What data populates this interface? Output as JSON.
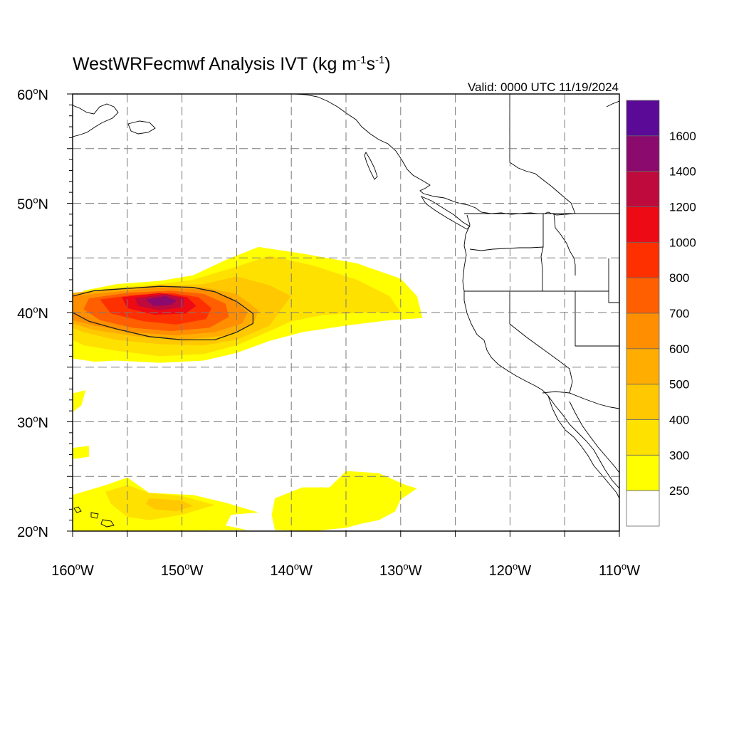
{
  "title": {
    "text": "WestWRFecmwf Analysis IVT (kg m",
    "sup1": "-1",
    "mid": "s",
    "sup2": "-1",
    "end": ")"
  },
  "valid_label": "Valid: 0000 UTC 11/19/2024",
  "map": {
    "projection": "cylindrical",
    "lon_range": [
      -160,
      -110
    ],
    "lat_range": [
      20,
      60
    ],
    "grid": "dashed every 5 degrees",
    "lat_ticks": [
      {
        "lat": 60,
        "deg": "60",
        "hem": "N"
      },
      {
        "lat": 50,
        "deg": "50",
        "hem": "N"
      },
      {
        "lat": 40,
        "deg": "40",
        "hem": "N"
      },
      {
        "lat": 30,
        "deg": "30",
        "hem": "N"
      },
      {
        "lat": 20,
        "deg": "20",
        "hem": "N"
      }
    ],
    "lon_ticks": [
      {
        "lon": -160,
        "deg": "160",
        "hem": "W"
      },
      {
        "lon": -150,
        "deg": "150",
        "hem": "W"
      },
      {
        "lon": -140,
        "deg": "140",
        "hem": "W"
      },
      {
        "lon": -130,
        "deg": "130",
        "hem": "W"
      },
      {
        "lon": -120,
        "deg": "120",
        "hem": "W"
      },
      {
        "lon": -110,
        "deg": "110",
        "hem": "W"
      }
    ]
  },
  "colorbar": {
    "orientation": "vertical",
    "position": "right",
    "labels": [
      "1600",
      "1400",
      "1200",
      "1000",
      "800",
      "700",
      "600",
      "500",
      "400",
      "300",
      "250"
    ],
    "colors_top_to_bottom": [
      "#5a0a96",
      "#8a0a6e",
      "#be0a3c",
      "#ee0a14",
      "#ff3000",
      "#ff5f00",
      "#ff8f00",
      "#ffad00",
      "#ffc800",
      "#ffe100",
      "#ffff00",
      "#ffffff"
    ]
  },
  "ivt_field": {
    "levels": [
      {
        "min": 250,
        "color": "#ffff00",
        "regions": [
          [
            [
              -160,
              40.6
            ],
            [
              -159,
              42
            ],
            [
              -156,
              42.6
            ],
            [
              -152,
              42.9
            ],
            [
              -149,
              43.4
            ],
            [
              -146,
              44.8
            ],
            [
              -143,
              46
            ],
            [
              -139,
              45.4
            ],
            [
              -134,
              44.5
            ],
            [
              -130,
              43.1
            ],
            [
              -128.5,
              41.5
            ],
            [
              -128,
              39.5
            ],
            [
              -131,
              39.3
            ],
            [
              -135,
              38.8
            ],
            [
              -139,
              38.2
            ],
            [
              -142,
              37.4
            ],
            [
              -145,
              36.3
            ],
            [
              -148,
              35.6
            ],
            [
              -152,
              35.4
            ],
            [
              -156,
              35.6
            ],
            [
              -158,
              35.5
            ],
            [
              -160,
              35.8
            ]
          ],
          [
            [
              -160,
              32.6
            ],
            [
              -158.8,
              32.9
            ],
            [
              -159.2,
              31.5
            ],
            [
              -160,
              30.9
            ]
          ],
          [
            [
              -160,
              27.6
            ],
            [
              -158.5,
              27.8
            ],
            [
              -158.5,
              26.8
            ],
            [
              -160,
              26.6
            ]
          ],
          [
            [
              -160,
              23.3
            ],
            [
              -157,
              24.2
            ],
            [
              -155,
              24.9
            ],
            [
              -153,
              23.5
            ],
            [
              -149,
              23.3
            ],
            [
              -146,
              22.6
            ],
            [
              -143,
              21.7
            ],
            [
              -145.5,
              21.5
            ],
            [
              -146,
              20.5
            ],
            [
              -144,
              20.1
            ],
            [
              -155,
              20
            ],
            [
              -160,
              20
            ]
          ],
          [
            [
              -135,
              25.5
            ],
            [
              -132,
              25.3
            ],
            [
              -129.5,
              24.2
            ],
            [
              -128.5,
              23.9
            ],
            [
              -130,
              22.9
            ],
            [
              -130.5,
              21.8
            ],
            [
              -132,
              21
            ],
            [
              -133.5,
              20.7
            ],
            [
              -135,
              20.3
            ],
            [
              -138,
              20
            ],
            [
              -141.5,
              20.1
            ],
            [
              -141.8,
              21.5
            ],
            [
              -141.5,
              23
            ],
            [
              -139,
              24
            ],
            [
              -136.5,
              24
            ]
          ]
        ]
      },
      {
        "min": 300,
        "color": "#ffe100",
        "regions": [
          [
            [
              -160,
              41.5
            ],
            [
              -157,
              42.2
            ],
            [
              -152,
              42.6
            ],
            [
              -149,
              43
            ],
            [
              -145,
              44.2
            ],
            [
              -142,
              45.2
            ],
            [
              -138,
              44.3
            ],
            [
              -134,
              43
            ],
            [
              -131,
              41.5
            ],
            [
              -130,
              40
            ],
            [
              -133,
              40
            ],
            [
              -137,
              39.8
            ],
            [
              -140,
              39.2
            ],
            [
              -142,
              38.3
            ],
            [
              -145,
              37
            ],
            [
              -148,
              36.2
            ],
            [
              -152,
              36
            ],
            [
              -156,
              36.5
            ],
            [
              -159,
              37
            ],
            [
              -160,
              37.5
            ]
          ],
          [
            [
              -157,
              23.6
            ],
            [
              -155,
              24.2
            ],
            [
              -153,
              23.5
            ],
            [
              -150,
              23.2
            ],
            [
              -147,
              22.4
            ],
            [
              -150,
              21.5
            ],
            [
              -153,
              21
            ],
            [
              -155,
              21.3
            ],
            [
              -156.5,
              22.5
            ]
          ]
        ]
      },
      {
        "min": 400,
        "color": "#ffc800",
        "regions": [
          [
            [
              -160,
              41.8
            ],
            [
              -157,
              42.1
            ],
            [
              -152,
              42.4
            ],
            [
              -148,
              42.6
            ],
            [
              -145,
              43.3
            ],
            [
              -142,
              42.5
            ],
            [
              -140,
              41.5
            ],
            [
              -141,
              40.2
            ],
            [
              -142,
              38.8
            ],
            [
              -145,
              37.5
            ],
            [
              -148,
              37
            ],
            [
              -152,
              37.1
            ],
            [
              -156,
              37.5
            ],
            [
              -159,
              38.2
            ],
            [
              -160,
              38.6
            ]
          ],
          [
            [
              -153,
              23
            ],
            [
              -150,
              22.8
            ],
            [
              -149,
              22.3
            ],
            [
              -150.5,
              21.8
            ],
            [
              -152.5,
              22
            ],
            [
              -153.3,
              22.5
            ]
          ]
        ]
      },
      {
        "min": 500,
        "color": "#ffad00",
        "regions": [
          [
            [
              -160,
              41.8
            ],
            [
              -156.5,
              42.1
            ],
            [
              -152,
              42.5
            ],
            [
              -148,
              42.3
            ],
            [
              -145,
              41.7
            ],
            [
              -143,
              40.2
            ],
            [
              -143.5,
              38.9
            ],
            [
              -146,
              37.9
            ],
            [
              -150,
              37.5
            ],
            [
              -154,
              37.8
            ],
            [
              -158,
              38.4
            ],
            [
              -160,
              39
            ]
          ]
        ]
      },
      {
        "min": 600,
        "color": "#ff8f00",
        "regions": [
          [
            [
              -160,
              41.5
            ],
            [
              -156,
              41.9
            ],
            [
              -152,
              42.3
            ],
            [
              -148,
              42.1
            ],
            [
              -145.5,
              41.4
            ],
            [
              -144,
              40
            ],
            [
              -144.5,
              39
            ],
            [
              -147,
              38.2
            ],
            [
              -150.5,
              37.9
            ],
            [
              -154.5,
              38.2
            ],
            [
              -158,
              38.8
            ],
            [
              -160,
              39.3
            ]
          ]
        ]
      },
      {
        "min": 700,
        "color": "#ff5f00",
        "regions": [
          [
            [
              -158.5,
              41.3
            ],
            [
              -155,
              41.8
            ],
            [
              -151,
              42
            ],
            [
              -148,
              41.7
            ],
            [
              -146,
              40.8
            ],
            [
              -145.7,
              39.6
            ],
            [
              -147.5,
              38.6
            ],
            [
              -151,
              38.3
            ],
            [
              -154.5,
              38.6
            ],
            [
              -157.5,
              39.3
            ],
            [
              -159,
              40.3
            ]
          ]
        ]
      },
      {
        "min": 800,
        "color": "#ff3000",
        "regions": [
          [
            [
              -157.5,
              41.2
            ],
            [
              -154.5,
              41.6
            ],
            [
              -151,
              41.8
            ],
            [
              -148.5,
              41.4
            ],
            [
              -147.3,
              40.4
            ],
            [
              -147.8,
              39.4
            ],
            [
              -150.5,
              38.9
            ],
            [
              -153.5,
              39.2
            ],
            [
              -156.5,
              39.9
            ]
          ]
        ]
      },
      {
        "min": 1000,
        "color": "#ee0a14",
        "regions": [
          [
            [
              -155.5,
              41.4
            ],
            [
              -152,
              41.8
            ],
            [
              -149.5,
              41.4
            ],
            [
              -148.7,
              40.6
            ],
            [
              -149.7,
              39.9
            ],
            [
              -152.5,
              39.8
            ],
            [
              -155,
              40.4
            ]
          ]
        ]
      },
      {
        "min": 1200,
        "color": "#be0a3c",
        "regions": [
          [
            [
              -154.3,
              41.3
            ],
            [
              -151.5,
              41.7
            ],
            [
              -149.8,
              41.3
            ],
            [
              -149.9,
              40.5
            ],
            [
              -152,
              40.2
            ],
            [
              -154,
              40.6
            ]
          ]
        ]
      },
      {
        "min": 1400,
        "color": "#8a0a6e",
        "regions": [
          [
            [
              -153.3,
              41.2
            ],
            [
              -151.5,
              41.5
            ],
            [
              -150.5,
              41.1
            ],
            [
              -151,
              40.7
            ],
            [
              -152.6,
              40.6
            ]
          ]
        ]
      }
    ],
    "contour_line": [
      [
        -160,
        41.5
      ],
      [
        -158,
        42
      ],
      [
        -155,
        42.2
      ],
      [
        -152,
        42.4
      ],
      [
        -149,
        42.3
      ],
      [
        -147,
        41.9
      ],
      [
        -145,
        41
      ],
      [
        -143.5,
        39.9
      ],
      [
        -143.5,
        39
      ],
      [
        -145,
        38.2
      ],
      [
        -147,
        37.5
      ],
      [
        -150,
        37.5
      ],
      [
        -153,
        37.8
      ],
      [
        -156,
        38.5
      ],
      [
        -158.5,
        39.2
      ],
      [
        -160,
        40
      ]
    ]
  }
}
